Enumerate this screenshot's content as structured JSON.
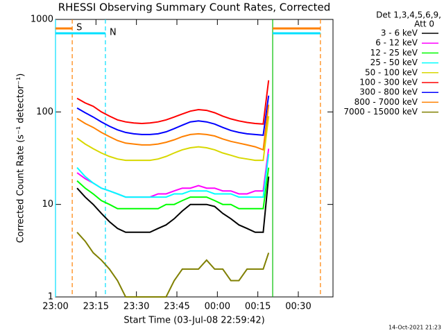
{
  "chart_data": {
    "type": "line",
    "title": "RHESSI Observing Summary Count Rates, Corrected",
    "x_label": "Start Time (03-Jul-08 22:59:42)",
    "y_label": "Corrected Count Rate (s⁻¹ detector⁻¹)",
    "legend_header": [
      "Det 1,3,4,5,6,9,",
      "Att 0"
    ],
    "footer": "14-Oct-2021 21:23",
    "log_y": true,
    "xlim": [
      0,
      102.86
    ],
    "ylim": [
      1,
      1000
    ],
    "xticks": [
      {
        "value": 0,
        "label": "23:00"
      },
      {
        "value": 15,
        "label": "23:15"
      },
      {
        "value": 30,
        "label": "23:30"
      },
      {
        "value": 45,
        "label": "23:45"
      },
      {
        "value": 60,
        "label": "00:00"
      },
      {
        "value": 75,
        "label": "00:15"
      },
      {
        "value": 90,
        "label": "00:30"
      }
    ],
    "yticks": [
      1,
      10,
      100,
      1000
    ],
    "annotations": [
      {
        "text": "S",
        "x": 6.2,
        "color": "#ff8000"
      },
      {
        "text": "N",
        "x": 18.5,
        "color": "#00e0ff"
      }
    ],
    "vlines": [
      {
        "x": 0,
        "color": "#00e0ff",
        "dashed": false
      },
      {
        "x": 80.5,
        "color": "#00c000",
        "dashed": false
      },
      {
        "x": 98.2,
        "color": "#ff8000",
        "dashed": true
      }
    ],
    "x": [
      8,
      11,
      14,
      17,
      20,
      23,
      26,
      29,
      32,
      35,
      38,
      41,
      44,
      47,
      50,
      53,
      56,
      59,
      62,
      65,
      68,
      71,
      74,
      77,
      79
    ],
    "series": [
      {
        "name": "3 - 6 keV",
        "color": "#000000",
        "values": [
          15,
          12,
          10,
          8,
          6.5,
          5.5,
          5,
          5,
          5,
          5,
          5.5,
          6,
          7,
          8.5,
          10,
          10,
          10,
          9.5,
          8,
          7,
          6,
          5.5,
          5,
          5,
          20
        ]
      },
      {
        "name": "6 - 12 keV",
        "color": "#ff00ff",
        "values": [
          22,
          19,
          17,
          15,
          14,
          13,
          12,
          12,
          12,
          12,
          13,
          13,
          14,
          15,
          15,
          16,
          15,
          15,
          14,
          14,
          13,
          13,
          14,
          14,
          40
        ]
      },
      {
        "name": "12 - 25 keV",
        "color": "#00ff00",
        "values": [
          18,
          15,
          13,
          11,
          10,
          9,
          9,
          9,
          9,
          9,
          9,
          10,
          10,
          11,
          12,
          12,
          12,
          11,
          10,
          10,
          9,
          9,
          9,
          9,
          25
        ]
      },
      {
        "name": "25 - 50 keV",
        "color": "#00ffff",
        "values": [
          25,
          20,
          17,
          15,
          14,
          13,
          12,
          12,
          12,
          12,
          12,
          12,
          13,
          13,
          14,
          14,
          14,
          13,
          13,
          13,
          12,
          12,
          12,
          12,
          35
        ]
      },
      {
        "name": "50 - 100 keV",
        "color": "#d8d800",
        "values": [
          52,
          45,
          40,
          36,
          33,
          31,
          30,
          30,
          30,
          30,
          31,
          33,
          36,
          39,
          41,
          42,
          41,
          39,
          36,
          34,
          32,
          31,
          30,
          30,
          90
        ]
      },
      {
        "name": "100 - 300 keV",
        "color": "#ff0000",
        "values": [
          140,
          125,
          115,
          100,
          90,
          82,
          78,
          76,
          75,
          76,
          78,
          82,
          88,
          95,
          102,
          106,
          104,
          98,
          90,
          84,
          80,
          77,
          75,
          74,
          220
        ]
      },
      {
        "name": "300 - 800 keV",
        "color": "#0000ff",
        "values": [
          110,
          98,
          88,
          78,
          70,
          64,
          60,
          58,
          57,
          57,
          58,
          61,
          66,
          72,
          78,
          80,
          78,
          74,
          68,
          63,
          60,
          58,
          57,
          56,
          150
        ]
      },
      {
        "name": "800 - 7000 keV",
        "color": "#ff8000",
        "values": [
          85,
          75,
          68,
          60,
          54,
          49,
          46,
          45,
          44,
          44,
          45,
          47,
          50,
          54,
          57,
          58,
          57,
          55,
          51,
          48,
          46,
          44,
          42,
          39,
          120
        ]
      },
      {
        "name": "7000 - 15000 keV",
        "color": "#808000",
        "values": [
          5,
          4,
          3,
          2.5,
          2,
          1.5,
          1,
          1,
          1,
          1,
          1,
          1,
          1.5,
          2,
          2,
          2,
          2.5,
          2,
          2,
          1.5,
          1.5,
          2,
          2,
          2,
          3
        ]
      }
    ]
  }
}
